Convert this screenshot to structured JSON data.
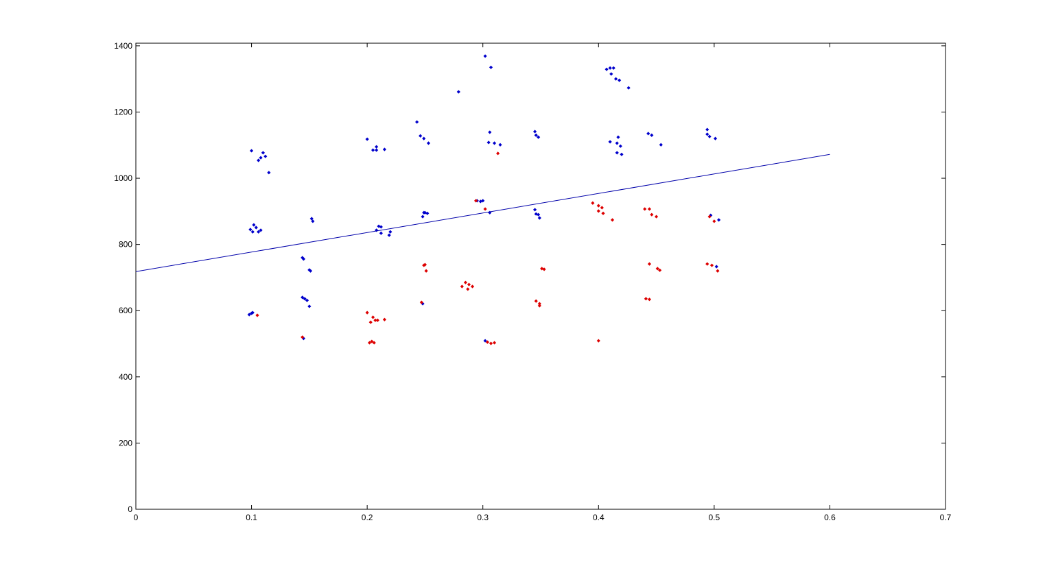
{
  "chart_data": {
    "type": "scatter",
    "xlim": [
      0,
      0.7
    ],
    "xticks": [
      0,
      0.1,
      0.2,
      0.3,
      0.4,
      0.5,
      0.6,
      0.7
    ],
    "ylim": [
      0,
      1408
    ],
    "yticks": [
      0,
      200,
      400,
      600,
      800,
      1000,
      1200,
      1400
    ],
    "series": [
      {
        "color": "#0000cc",
        "style": "dot",
        "x": [
          0.1,
          0.099,
          0.101,
          0.102,
          0.104,
          0.106,
          0.108,
          0.106,
          0.108,
          0.11,
          0.112,
          0.115,
          0.098,
          0.1,
          0.101,
          0.144,
          0.145,
          0.15,
          0.151,
          0.144,
          0.146,
          0.148,
          0.15,
          0.145,
          0.152,
          0.153,
          0.2,
          0.205,
          0.208,
          0.208,
          0.215,
          0.208,
          0.21,
          0.212,
          0.212,
          0.219,
          0.22,
          0.243,
          0.246,
          0.249,
          0.253,
          0.249,
          0.25,
          0.252,
          0.248,
          0.248,
          0.279,
          0.302,
          0.307,
          0.306,
          0.305,
          0.31,
          0.315,
          0.295,
          0.298,
          0.3,
          0.306,
          0.302,
          0.345,
          0.346,
          0.348,
          0.345,
          0.346,
          0.348,
          0.349,
          0.407,
          0.41,
          0.411,
          0.413,
          0.415,
          0.418,
          0.426,
          0.41,
          0.417,
          0.416,
          0.419,
          0.416,
          0.42,
          0.443,
          0.446,
          0.454,
          0.494,
          0.494,
          0.496,
          0.501,
          0.497,
          0.504,
          0.502
        ],
        "values": [
          1083,
          845,
          838,
          859,
          851,
          838,
          843,
          1054,
          1062,
          1077,
          1066,
          1017,
          588,
          592,
          594,
          760,
          756,
          723,
          720,
          640,
          636,
          631,
          613,
          516,
          878,
          870,
          1118,
          1085,
          1095,
          1085,
          1087,
          843,
          855,
          853,
          834,
          828,
          838,
          1170,
          1128,
          1120,
          1106,
          896,
          896,
          894,
          884,
          621,
          1261,
          1369,
          1335,
          1139,
          1108,
          1106,
          1101,
          932,
          930,
          932,
          896,
          509,
          1141,
          1130,
          1124,
          905,
          892,
          890,
          880,
          1329,
          1333,
          1315,
          1333,
          1300,
          1296,
          1273,
          1110,
          1124,
          1106,
          1097,
          1077,
          1072,
          1135,
          1130,
          1101,
          1147,
          1133,
          1126,
          1120,
          888,
          874,
          733
        ]
      },
      {
        "color": "#dd0000",
        "style": "dot",
        "x": [
          0.105,
          0.144,
          0.2,
          0.203,
          0.205,
          0.207,
          0.209,
          0.215,
          0.202,
          0.204,
          0.206,
          0.249,
          0.25,
          0.251,
          0.247,
          0.282,
          0.285,
          0.287,
          0.288,
          0.291,
          0.294,
          0.302,
          0.304,
          0.307,
          0.31,
          0.313,
          0.346,
          0.349,
          0.349,
          0.351,
          0.353,
          0.395,
          0.4,
          0.4,
          0.403,
          0.404,
          0.412,
          0.4,
          0.44,
          0.444,
          0.446,
          0.45,
          0.444,
          0.451,
          0.453,
          0.441,
          0.444,
          0.494,
          0.498,
          0.503,
          0.5,
          0.496
        ],
        "values": [
          586,
          520,
          594,
          565,
          580,
          571,
          571,
          573,
          503,
          507,
          503,
          737,
          739,
          720,
          625,
          673,
          685,
          665,
          679,
          673,
          932,
          907,
          505,
          501,
          503,
          1075,
          629,
          621,
          615,
          727,
          725,
          925,
          917,
          901,
          911,
          894,
          874,
          509,
          907,
          907,
          890,
          884,
          741,
          727,
          722,
          636,
          634,
          741,
          737,
          720,
          870,
          884
        ]
      },
      {
        "color": "#0000aa",
        "style": "line",
        "x": [
          0,
          0.6
        ],
        "values": [
          718,
          1072
        ]
      }
    ]
  }
}
